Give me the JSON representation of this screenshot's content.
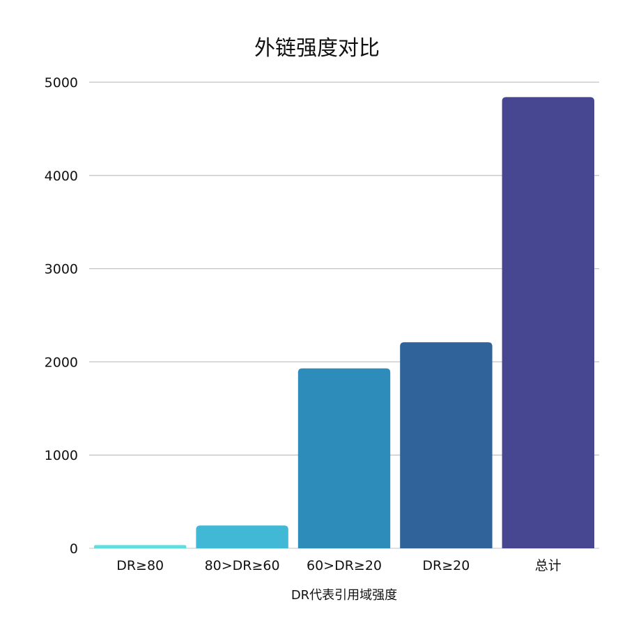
{
  "chart_data": {
    "type": "bar",
    "title": "外链强度对比",
    "xlabel": "DR代表引用域强度",
    "ylabel": "",
    "categories": [
      "DR≥80",
      "80>DR≥60",
      "60>DR≥20",
      "DR≥20",
      "总计"
    ],
    "values": [
      35,
      245,
      1930,
      2210,
      4840
    ],
    "colors": [
      "#5fdde0",
      "#41b8d5",
      "#2e8cba",
      "#2f6399",
      "#464790"
    ],
    "ylim": [
      0,
      5000
    ],
    "yticks": [
      0,
      1000,
      2000,
      3000,
      4000,
      5000
    ],
    "grid": true,
    "legend": "none"
  }
}
